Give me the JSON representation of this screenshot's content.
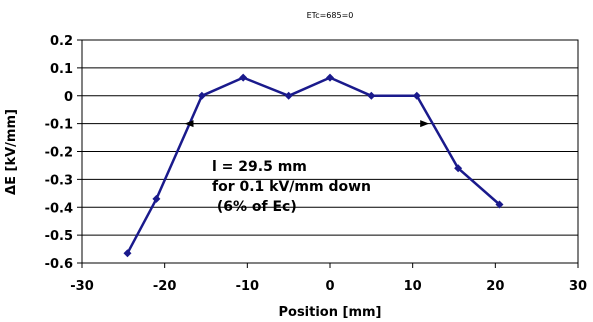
{
  "chart_data": {
    "type": "line",
    "title": "ETc=685=0",
    "xlabel": "Position  [mm]",
    "ylabel": "ΔE  [kV/mm]",
    "xlim": [
      -30,
      30
    ],
    "ylim": [
      -0.6,
      0.2
    ],
    "x_ticks": [
      "-30",
      "-20",
      "-10",
      "0",
      "10",
      "20",
      "30"
    ],
    "y_ticks": [
      "0.2",
      "0.1",
      "0",
      "-0.1",
      "-0.2",
      "-0.3",
      "-0.4",
      "-0.5",
      "-0.6"
    ],
    "grid": true,
    "series": [
      {
        "x": [
          -24.5,
          -21,
          -15.5,
          -10.5,
          -5,
          0,
          5,
          10.5,
          15.5,
          20.5
        ],
        "y": [
          -0.565,
          -0.37,
          0.0,
          0.065,
          0.0,
          0.065,
          0.0,
          0.0,
          -0.26,
          -0.39
        ],
        "color": "#1a1a8c"
      }
    ],
    "annotation": {
      "lines": [
        "l = 29.5 mm",
        "for 0.1 kV/mm down",
        " (6% of Ec)"
      ],
      "arrow_from_x": -17.6,
      "arrow_to_x": 12.0,
      "arrow_y": -0.1
    }
  }
}
